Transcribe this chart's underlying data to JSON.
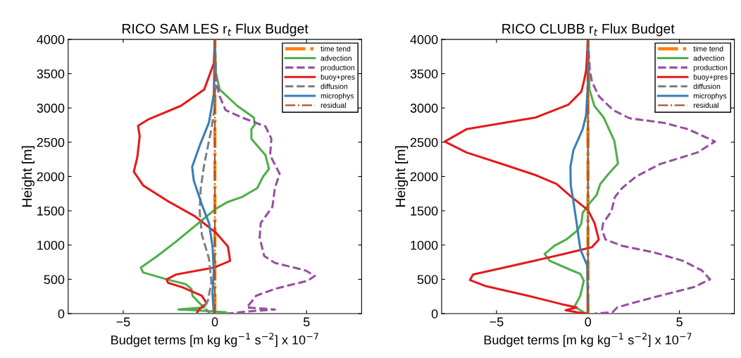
{
  "chart_data": [
    {
      "type": "line",
      "title": "RICO SAM LES r$_{t}$ Flux Budget",
      "xlabel": "Budget terms [m kg kg$^{−1}$ s$^{−2}$] x 10$^{−7}$",
      "ylabel": "Height [m]",
      "xlim": [
        -8,
        8
      ],
      "ylim": [
        0,
        4000
      ],
      "xticks": [
        {
          "value": -5,
          "label": "−5"
        },
        0,
        5
      ],
      "yticks": [
        0,
        500,
        1000,
        1500,
        2000,
        2500,
        3000,
        3500,
        4000
      ],
      "grid": false,
      "legend": "top right",
      "series": [
        {
          "name": "time tend",
          "color": "#ff7f00",
          "line_style": "dashdot",
          "x": [
            0,
            0
          ],
          "values": [
            0,
            4000
          ]
        },
        {
          "name": "advection",
          "color": "#4daf4a",
          "line_style": "solid",
          "x": [
            0,
            0.06,
            0.26,
            1.22,
            2.12,
            2.18,
            1.99,
            1.99,
            2.76,
            2.95,
            2.63,
            2.31,
            1.47,
            0.71,
            0.06,
            -0.58,
            -1.35,
            -2.12,
            -3.14,
            -4.04,
            -3.91,
            -2.63,
            -1.6,
            -1.28,
            -1.22,
            -0.83,
            -0.58,
            -1.99,
            -1.09,
            -0.06,
            0.58,
            0.71
          ],
          "values": [
            4000,
            3510,
            3270,
            3030,
            2860,
            2760,
            2690,
            2550,
            2310,
            2110,
            2000,
            1830,
            1700,
            1630,
            1530,
            1390,
            1220,
            1050,
            840,
            670,
            600,
            500,
            430,
            360,
            260,
            150,
            90,
            60,
            50,
            30,
            20,
            0
          ]
        },
        {
          "name": "production",
          "color": "#984ea3",
          "line_style": "dashed",
          "x": [
            0,
            0.06,
            0.26,
            0.58,
            1.47,
            2.76,
            3.08,
            3.01,
            3.53,
            3.27,
            3.14,
            2.5,
            2.44,
            2.69,
            3.27,
            4.94,
            5.45,
            5.06,
            3.27,
            2.24,
            1.99,
            1.73,
            3.27,
            1.73,
            0.71
          ],
          "values": [
            4000,
            3380,
            3170,
            2970,
            2860,
            2730,
            2550,
            2310,
            2040,
            1830,
            1560,
            1320,
            1110,
            840,
            740,
            630,
            550,
            480,
            360,
            260,
            170,
            90,
            60,
            30,
            0
          ]
        },
        {
          "name": "buoy+pres",
          "color": "#e41a1c",
          "line_style": "solid",
          "x": [
            0,
            -0.06,
            -0.58,
            -1.86,
            -3.65,
            -4.19,
            -4.1,
            -4.23,
            -4.42,
            -3.91,
            -2.5,
            -1.09,
            0.06,
            0.71,
            0.83,
            -0.06,
            -2.12,
            -2.63,
            -2.56,
            -1.73,
            -0.71,
            -0.45,
            -0.83,
            -0.96
          ],
          "values": [
            4000,
            3650,
            3270,
            3030,
            2830,
            2740,
            2590,
            2280,
            2070,
            1870,
            1630,
            1420,
            1180,
            980,
            770,
            670,
            570,
            500,
            450,
            380,
            260,
            150,
            70,
            20
          ]
        },
        {
          "name": "diffusion",
          "color": "#808080",
          "line_style": "dashed",
          "x": [
            0,
            0,
            -0.19,
            -0.58,
            -0.77,
            -0.83,
            -0.71,
            -0.32,
            -0.19,
            -0.38,
            -0.58,
            -0.26
          ],
          "values": [
            4000,
            3030,
            2690,
            2180,
            1830,
            1490,
            1150,
            800,
            460,
            190,
            90,
            0
          ]
        },
        {
          "name": "microphys",
          "color": "#377eb8",
          "line_style": "solid",
          "x": [
            0,
            -0.06,
            -0.32,
            -0.83,
            -1.24,
            -1.15,
            -0.71,
            -0.32,
            -0.13,
            -0.06,
            -0.13,
            -0.06
          ],
          "values": [
            4000,
            3200,
            2790,
            2450,
            2140,
            1940,
            1590,
            1320,
            980,
            630,
            290,
            0
          ]
        },
        {
          "name": "residual",
          "color": "#a65628",
          "line_style": "dashdot",
          "x": [
            0,
            0
          ],
          "values": [
            0,
            4000
          ]
        }
      ]
    },
    {
      "type": "line",
      "title": "RICO CLUBB r$_{t}$ Flux Budget",
      "xlabel": "Budget terms [m kg kg$^{−1}$ s$^{−2}$] x 10$^{−7}$",
      "ylabel": "Height [m]",
      "xlim": [
        -8,
        8
      ],
      "ylim": [
        0,
        4000
      ],
      "xticks": [
        {
          "value": -5,
          "label": "−5"
        },
        0,
        5
      ],
      "yticks": [
        0,
        500,
        1000,
        1500,
        2000,
        2500,
        3000,
        3500,
        4000
      ],
      "grid": false,
      "legend": "top right",
      "series": [
        {
          "name": "time tend",
          "color": "#ff7f00",
          "line_style": "dashdot",
          "x": [
            0,
            0
          ],
          "values": [
            0,
            4000
          ]
        },
        {
          "name": "advection",
          "color": "#4daf4a",
          "line_style": "solid",
          "x": [
            0,
            0.08,
            0.35,
            0.86,
            1.44,
            1.64,
            1.13,
            0.67,
            0.47,
            0.09,
            -0.29,
            -0.36,
            -0.55,
            -1.19,
            -1.83,
            -2.37,
            -2.09,
            -1.06,
            -0.42,
            -0.23,
            -0.42,
            -0.74,
            -0.1
          ],
          "values": [
            4000,
            3270,
            3030,
            2860,
            2520,
            2190,
            2040,
            1890,
            1730,
            1610,
            1470,
            1320,
            1220,
            1080,
            990,
            870,
            770,
            650,
            580,
            480,
            260,
            100,
            0
          ]
        },
        {
          "name": "production",
          "color": "#984ea3",
          "line_style": "dashed",
          "x": [
            0,
            0.1,
            0.22,
            0.6,
            1.37,
            2.27,
            4.19,
            5.47,
            6.94,
            5.98,
            3.92,
            2.63,
            1.86,
            1.47,
            1.28,
            0.83,
            0.77,
            0.96,
            1.86,
            3.65,
            5.19,
            6.22,
            6.67,
            5.83,
            3.92,
            2.37,
            1.6,
            1.35,
            0.35
          ],
          "values": [
            4000,
            3550,
            3380,
            3170,
            2970,
            2850,
            2780,
            2690,
            2510,
            2350,
            2180,
            2000,
            1830,
            1700,
            1490,
            1320,
            1220,
            1080,
            990,
            890,
            770,
            630,
            500,
            390,
            260,
            150,
            90,
            20,
            0
          ]
        },
        {
          "name": "buoy+pres",
          "color": "#e41a1c",
          "line_style": "solid",
          "x": [
            0,
            -0.1,
            -0.23,
            -0.36,
            -1.06,
            -2.86,
            -6.64,
            -7.83,
            -6.64,
            -4.78,
            -2.86,
            -1.71,
            -0.94,
            0,
            0.36,
            0.59,
            0.22,
            -1.46,
            -3.27,
            -4.94,
            -6.28,
            -6.45,
            -5.58,
            -3.27,
            -1.47,
            -0.62,
            -1.22,
            -0.62,
            -0.1
          ],
          "values": [
            4000,
            3550,
            3380,
            3240,
            3050,
            2860,
            2690,
            2510,
            2350,
            2190,
            2020,
            1890,
            1710,
            1510,
            1320,
            1080,
            970,
            860,
            750,
            650,
            570,
            490,
            400,
            260,
            140,
            90,
            50,
            20,
            0
          ]
        },
        {
          "name": "diffusion",
          "color": "#808080",
          "line_style": "dashed",
          "x": [
            0,
            0
          ],
          "values": [
            0,
            4000
          ]
        },
        {
          "name": "microphys",
          "color": "#377eb8",
          "line_style": "solid",
          "x": [
            0,
            0,
            -0.1,
            -0.29,
            -0.8,
            -0.96,
            -0.94,
            -0.81,
            -0.62,
            -0.42,
            -0.04,
            0
          ],
          "values": [
            4000,
            3380,
            2900,
            2690,
            2380,
            2140,
            1870,
            1660,
            1320,
            940,
            700,
            0
          ]
        },
        {
          "name": "residual",
          "color": "#a65628",
          "line_style": "dashdot",
          "x": [
            0,
            0
          ],
          "values": [
            0,
            4000
          ]
        }
      ]
    }
  ]
}
